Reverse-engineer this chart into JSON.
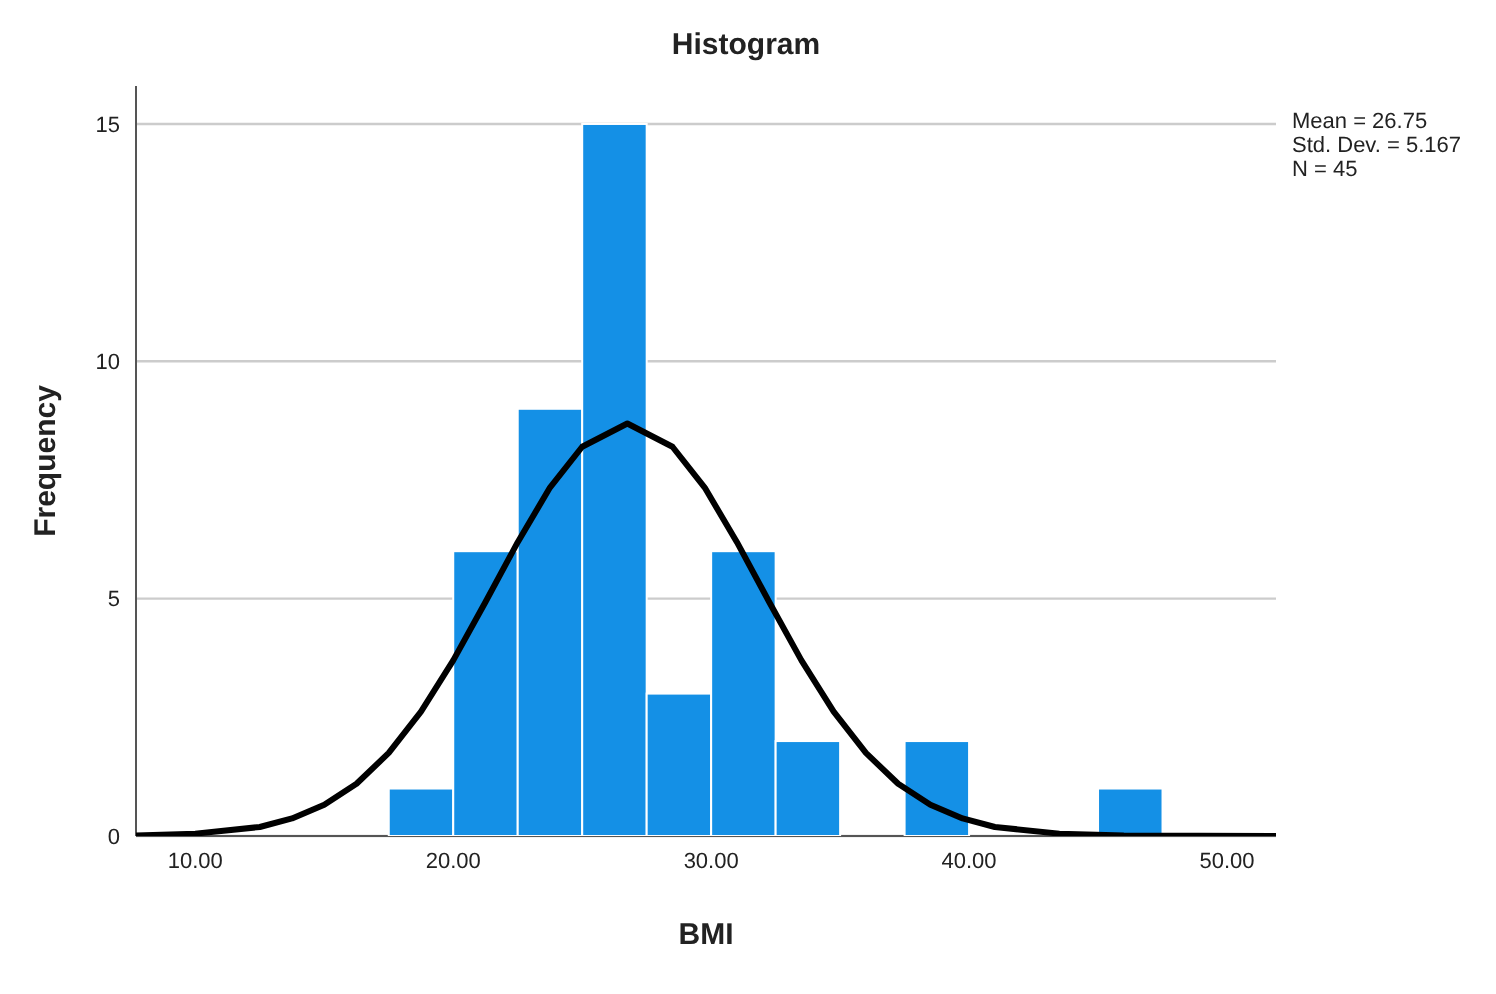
{
  "chart_data": {
    "type": "histogram",
    "title": "Histogram",
    "xlabel": "BMI",
    "ylabel": "Frequency",
    "bins": [
      17.5,
      20,
      22.5,
      25,
      27.5,
      30,
      32.5,
      35,
      37.5,
      40,
      42.5,
      45,
      47.5
    ],
    "values": [
      1,
      6,
      9,
      15,
      3,
      6,
      2,
      0,
      2,
      0,
      0,
      1
    ],
    "color": "#1490e6",
    "series": [
      {
        "type": "line",
        "color": "#000000",
        "x": [
          7.7,
          10,
          12.5,
          13.75,
          15,
          16.25,
          17.5,
          18.75,
          20,
          21.25,
          22.5,
          23.75,
          25,
          26.75,
          28.5,
          29.75,
          31,
          32.25,
          33.5,
          34.75,
          36,
          37.25,
          38.5,
          39.75,
          41,
          43.5,
          46,
          51.9
        ],
        "values": [
          0.01,
          0.05,
          0.19,
          0.37,
          0.66,
          1.1,
          1.75,
          2.62,
          3.7,
          4.93,
          6.19,
          7.34,
          8.2,
          8.69,
          8.2,
          7.34,
          6.19,
          4.93,
          3.7,
          2.62,
          1.75,
          1.1,
          0.66,
          0.37,
          0.19,
          0.05,
          0.01,
          0
        ]
      }
    ],
    "xlim": [
      7.7,
      51.9
    ],
    "xticks": [
      {
        "value": 10,
        "label": "10.00"
      },
      {
        "value": 20,
        "label": "20.00"
      },
      {
        "value": 30,
        "label": "30.00"
      },
      {
        "value": 40,
        "label": "40.00"
      },
      {
        "value": 50,
        "label": "50.00"
      }
    ],
    "ylim": [
      0,
      15.8
    ],
    "yticks": [
      0,
      5,
      10,
      15
    ],
    "grid": "y",
    "marker": "none",
    "line_style": "solid",
    "annotations": [
      "Mean = 26.75",
      "Std. Dev. = 5.167",
      "N = 45"
    ]
  }
}
